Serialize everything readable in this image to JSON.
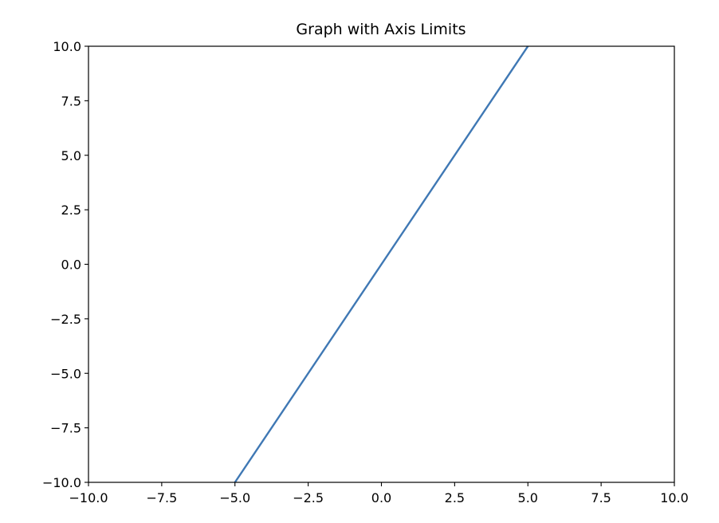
{
  "chart_data": {
    "type": "line",
    "title": "Graph with Axis Limits",
    "xlabel": "",
    "ylabel": "",
    "xlim": [
      -10,
      10
    ],
    "ylim": [
      -10,
      10
    ],
    "grid": false,
    "xticks": [
      -10,
      -7.5,
      -5,
      -2.5,
      0,
      2.5,
      5,
      7.5,
      10
    ],
    "yticks": [
      -10,
      -7.5,
      -5,
      -2.5,
      0,
      2.5,
      5,
      7.5,
      10
    ],
    "xtick_labels": [
      "−10.0",
      "−7.5",
      "−5.0",
      "−2.5",
      "0.0",
      "2.5",
      "5.0",
      "7.5",
      "10.0"
    ],
    "ytick_labels": [
      "−10.0",
      "−7.5",
      "−5.0",
      "−2.5",
      "0.0",
      "2.5",
      "5.0",
      "7.5",
      "10.0"
    ],
    "series": [
      {
        "color": "#3f78b4",
        "x": [
          -5,
          5
        ],
        "y": [
          -10,
          10
        ]
      }
    ]
  }
}
